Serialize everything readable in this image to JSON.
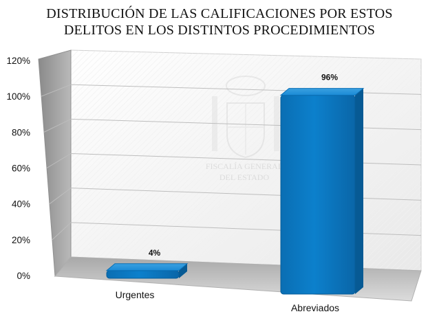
{
  "chart_data": {
    "type": "bar",
    "title_lines": [
      "DISTRIBUCIÓN DE LAS CALIFICACIONES POR ESTOS",
      "DELITOS EN LOS DISTINTOS PROCEDIMIENTOS"
    ],
    "categories": [
      "Urgentes",
      "Abreviados"
    ],
    "values": [
      4,
      96
    ],
    "data_labels": [
      "4%",
      "96%"
    ],
    "ylim": [
      0,
      120
    ],
    "yticks": [
      "0%",
      "20%",
      "40%",
      "60%",
      "80%",
      "100%",
      "120%"
    ],
    "bar_color": "#0a78c2",
    "grid": true,
    "style": "3d",
    "watermark": [
      "FISCALÍA GENERAL",
      "DEL ESTADO"
    ]
  }
}
